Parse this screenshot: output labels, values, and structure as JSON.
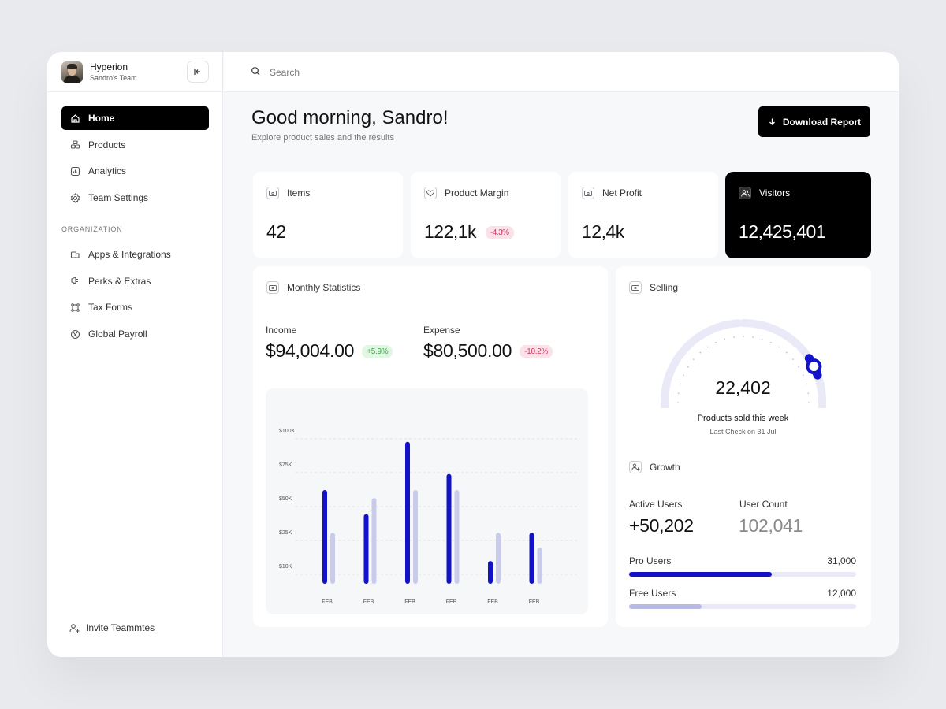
{
  "profile": {
    "name": "Hyperion",
    "team": "Sandro's Team"
  },
  "search": {
    "placeholder": "Search"
  },
  "nav": [
    {
      "label": "Home",
      "icon": "home-icon",
      "active": true
    },
    {
      "label": "Products",
      "icon": "products-icon"
    },
    {
      "label": "Analytics",
      "icon": "analytics-icon"
    },
    {
      "label": "Team Settings",
      "icon": "gear-icon"
    }
  ],
  "organization": {
    "label": "ORGANIZATION",
    "items": [
      {
        "label": "Apps & Integrations",
        "icon": "apps-icon"
      },
      {
        "label": "Perks & Extras",
        "icon": "perks-icon"
      },
      {
        "label": "Tax Forms",
        "icon": "tax-forms-icon"
      },
      {
        "label": "Global Payroll",
        "icon": "payroll-icon"
      }
    ]
  },
  "invite": {
    "label": "Invite Teammtes"
  },
  "header": {
    "greeting": "Good morning, Sandro!",
    "subtitle": "Explore product sales and the results",
    "download_label": "Download Report"
  },
  "stats": {
    "items": {
      "title": "Items",
      "value": "42"
    },
    "margin": {
      "title": "Product Margin",
      "value": "122,1k",
      "badge": "-4.3%"
    },
    "profit": {
      "title": "Net Profit",
      "value": "12,4k"
    },
    "visitors": {
      "title": "Visitors",
      "value": "12,425,401"
    }
  },
  "monthly": {
    "title": "Monthly Statistics",
    "income_label": "Income",
    "income_value": "$94,004.00",
    "income_badge": "+5.9%",
    "expense_label": "Expense",
    "expense_value": "$80,500.00",
    "expense_badge": "-10.2%"
  },
  "selling": {
    "title": "Selling",
    "value": "22,402",
    "caption": "Products sold this week",
    "subcaption": "Last Check on 31 Jul",
    "gauge_level": 0.82
  },
  "growth": {
    "title": "Growth",
    "active_label": "Active Users",
    "active_value": "+50,202",
    "count_label": "User Count",
    "count_value": "102,041",
    "pro_label": "Pro Users",
    "pro_value": "31,000",
    "pro_fill": 0.63,
    "free_label": "Free Users",
    "free_value": "12,000",
    "free_fill": 0.32
  },
  "colors": {
    "accent": "#1212c8",
    "accent_light": "#c9cbeb",
    "track": "#e9e9f7",
    "free_fill": "#b9bbe6"
  },
  "chart_data": {
    "type": "bar",
    "categories": [
      "FEB",
      "FEB",
      "FEB",
      "FEB",
      "FEB",
      "FEB"
    ],
    "y_ticks": [
      "$100K",
      "$75K",
      "$50K",
      "$25K",
      "$10K"
    ],
    "series": [
      {
        "values": [
          70,
          52,
          106,
          82,
          17,
          38
        ]
      },
      {
        "values": [
          38,
          64,
          70,
          70,
          38,
          27
        ]
      }
    ]
  }
}
